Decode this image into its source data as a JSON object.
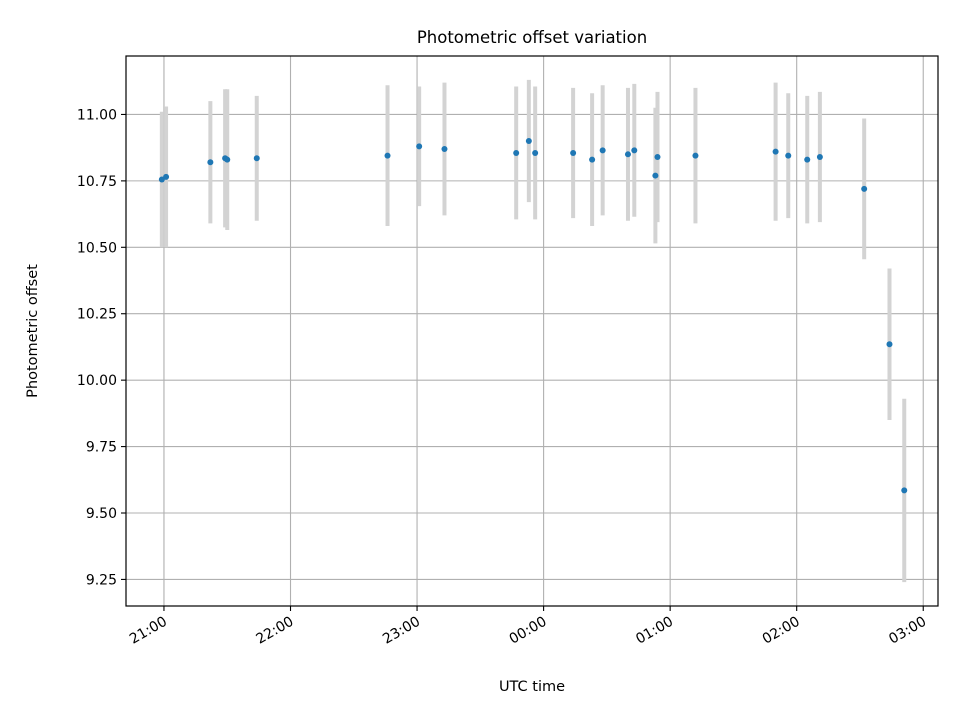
{
  "chart_data": {
    "type": "scatter",
    "title": "Photometric offset variation",
    "xlabel": "UTC time",
    "ylabel": "Photometric offset",
    "x_ticks": [
      "21:00",
      "22:00",
      "23:00",
      "00:00",
      "01:00",
      "02:00",
      "03:00"
    ],
    "y_ticks": [
      "9.25",
      "9.50",
      "9.75",
      "10.00",
      "10.25",
      "10.50",
      "10.75",
      "11.00"
    ],
    "xlim": [
      "20:42",
      "03:07"
    ],
    "ylim": [
      9.15,
      11.22
    ],
    "grid": true,
    "colors": {
      "marker": "#1f77b4",
      "errorbar": "#d3d3d3",
      "grid": "#b0b0b0",
      "axes": "#000000"
    },
    "points": [
      {
        "x": "20:59",
        "y": 10.755,
        "err": 0.255
      },
      {
        "x": "21:01",
        "y": 10.765,
        "err": 0.265
      },
      {
        "x": "21:22",
        "y": 10.82,
        "err": 0.23
      },
      {
        "x": "21:29",
        "y": 10.835,
        "err": 0.26
      },
      {
        "x": "21:30",
        "y": 10.83,
        "err": 0.265
      },
      {
        "x": "21:44",
        "y": 10.835,
        "err": 0.235
      },
      {
        "x": "22:46",
        "y": 10.845,
        "err": 0.265
      },
      {
        "x": "23:01",
        "y": 10.88,
        "err": 0.225
      },
      {
        "x": "23:13",
        "y": 10.87,
        "err": 0.25
      },
      {
        "x": "23:47",
        "y": 10.855,
        "err": 0.25
      },
      {
        "x": "23:53",
        "y": 10.9,
        "err": 0.23
      },
      {
        "x": "23:56",
        "y": 10.855,
        "err": 0.25
      },
      {
        "x": "00:14",
        "y": 10.855,
        "err": 0.245
      },
      {
        "x": "00:23",
        "y": 10.83,
        "err": 0.25
      },
      {
        "x": "00:28",
        "y": 10.865,
        "err": 0.245
      },
      {
        "x": "00:40",
        "y": 10.85,
        "err": 0.25
      },
      {
        "x": "00:43",
        "y": 10.865,
        "err": 0.25
      },
      {
        "x": "00:53",
        "y": 10.77,
        "err": 0.255
      },
      {
        "x": "00:54",
        "y": 10.84,
        "err": 0.245
      },
      {
        "x": "01:12",
        "y": 10.845,
        "err": 0.255
      },
      {
        "x": "01:50",
        "y": 10.86,
        "err": 0.26
      },
      {
        "x": "01:56",
        "y": 10.845,
        "err": 0.235
      },
      {
        "x": "02:05",
        "y": 10.83,
        "err": 0.24
      },
      {
        "x": "02:11",
        "y": 10.84,
        "err": 0.245
      },
      {
        "x": "02:32",
        "y": 10.72,
        "err": 0.265
      },
      {
        "x": "02:44",
        "y": 10.135,
        "err": 0.285
      },
      {
        "x": "02:51",
        "y": 9.585,
        "err": 0.345
      }
    ]
  }
}
